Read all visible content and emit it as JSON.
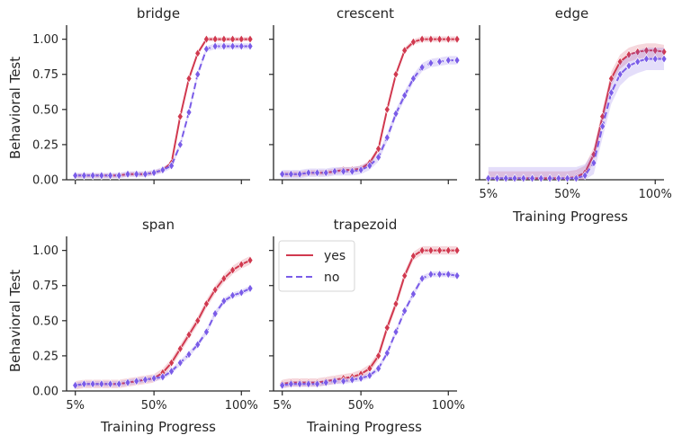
{
  "chart_data": {
    "type": "line",
    "ylabel": "Behavioral Test",
    "xlabel": "Training Progress",
    "x_ticks": [
      5,
      50,
      100
    ],
    "x_tick_labels": [
      "5%",
      "50%",
      "100%"
    ],
    "xlim": [
      0,
      105
    ],
    "y_ticks": [
      0,
      0.25,
      0.5,
      0.75,
      1.0
    ],
    "y_tick_labels": [
      "0.00",
      "0.25",
      "0.50",
      "0.75",
      "1.00"
    ],
    "ylim": [
      0,
      1.1
    ],
    "series_styles": [
      {
        "name": "yes",
        "color": "#d1394f",
        "dash": "solid",
        "marker": "diamond"
      },
      {
        "name": "no",
        "color": "#7a5ce8",
        "dash": "dashed",
        "marker": "diamond"
      }
    ],
    "legend": {
      "entries": [
        "yes",
        "no"
      ],
      "panel": "trapezoid",
      "location": "upper-left"
    },
    "x": [
      5,
      10,
      15,
      20,
      25,
      30,
      35,
      40,
      45,
      50,
      55,
      60,
      65,
      70,
      75,
      80,
      85,
      90,
      95,
      100,
      105
    ],
    "panels": [
      {
        "title": "bridge",
        "series": [
          {
            "name": "yes",
            "values": [
              0.03,
              0.03,
              0.03,
              0.03,
              0.03,
              0.03,
              0.04,
              0.04,
              0.04,
              0.05,
              0.07,
              0.12,
              0.45,
              0.72,
              0.9,
              1.0,
              1.0,
              1.0,
              1.0,
              1.0,
              1.0
            ],
            "band": 0.015
          },
          {
            "name": "no",
            "values": [
              0.03,
              0.03,
              0.03,
              0.03,
              0.03,
              0.03,
              0.04,
              0.04,
              0.04,
              0.05,
              0.07,
              0.1,
              0.25,
              0.48,
              0.75,
              0.93,
              0.95,
              0.95,
              0.95,
              0.95,
              0.95
            ],
            "band": 0.02
          }
        ]
      },
      {
        "title": "crescent",
        "series": [
          {
            "name": "yes",
            "values": [
              0.04,
              0.04,
              0.04,
              0.05,
              0.05,
              0.05,
              0.06,
              0.07,
              0.07,
              0.08,
              0.12,
              0.22,
              0.5,
              0.75,
              0.92,
              0.98,
              1.0,
              1.0,
              1.0,
              1.0,
              1.0
            ],
            "band": 0.02
          },
          {
            "name": "no",
            "values": [
              0.04,
              0.04,
              0.04,
              0.05,
              0.05,
              0.05,
              0.06,
              0.06,
              0.06,
              0.07,
              0.1,
              0.16,
              0.3,
              0.47,
              0.6,
              0.72,
              0.8,
              0.83,
              0.84,
              0.85,
              0.85
            ],
            "band": 0.03
          }
        ]
      },
      {
        "title": "edge",
        "series": [
          {
            "name": "yes",
            "values": [
              0.01,
              0.01,
              0.01,
              0.01,
              0.01,
              0.01,
              0.01,
              0.01,
              0.01,
              0.01,
              0.02,
              0.05,
              0.18,
              0.45,
              0.72,
              0.84,
              0.89,
              0.91,
              0.92,
              0.92,
              0.91
            ],
            "band": 0.05
          },
          {
            "name": "no",
            "values": [
              0.01,
              0.01,
              0.01,
              0.01,
              0.01,
              0.01,
              0.01,
              0.01,
              0.01,
              0.01,
              0.01,
              0.03,
              0.12,
              0.38,
              0.62,
              0.75,
              0.81,
              0.84,
              0.86,
              0.86,
              0.86
            ],
            "band": 0.08
          }
        ]
      },
      {
        "title": "span",
        "series": [
          {
            "name": "yes",
            "values": [
              0.04,
              0.05,
              0.05,
              0.05,
              0.05,
              0.05,
              0.06,
              0.07,
              0.08,
              0.09,
              0.13,
              0.2,
              0.3,
              0.4,
              0.5,
              0.62,
              0.72,
              0.8,
              0.86,
              0.9,
              0.93
            ],
            "band": 0.03
          },
          {
            "name": "no",
            "values": [
              0.04,
              0.05,
              0.05,
              0.05,
              0.05,
              0.05,
              0.06,
              0.07,
              0.08,
              0.09,
              0.1,
              0.14,
              0.2,
              0.26,
              0.33,
              0.42,
              0.55,
              0.64,
              0.68,
              0.7,
              0.73
            ],
            "band": 0.02
          }
        ]
      },
      {
        "title": "trapezoid",
        "series": [
          {
            "name": "yes",
            "values": [
              0.05,
              0.06,
              0.06,
              0.06,
              0.06,
              0.07,
              0.08,
              0.09,
              0.1,
              0.12,
              0.16,
              0.25,
              0.45,
              0.62,
              0.82,
              0.96,
              1.0,
              1.0,
              1.0,
              1.0,
              1.0
            ],
            "band": 0.03
          },
          {
            "name": "no",
            "values": [
              0.04,
              0.05,
              0.05,
              0.05,
              0.05,
              0.06,
              0.07,
              0.07,
              0.08,
              0.09,
              0.11,
              0.16,
              0.27,
              0.42,
              0.57,
              0.69,
              0.8,
              0.83,
              0.83,
              0.83,
              0.82
            ],
            "band": 0.02
          }
        ]
      }
    ]
  }
}
